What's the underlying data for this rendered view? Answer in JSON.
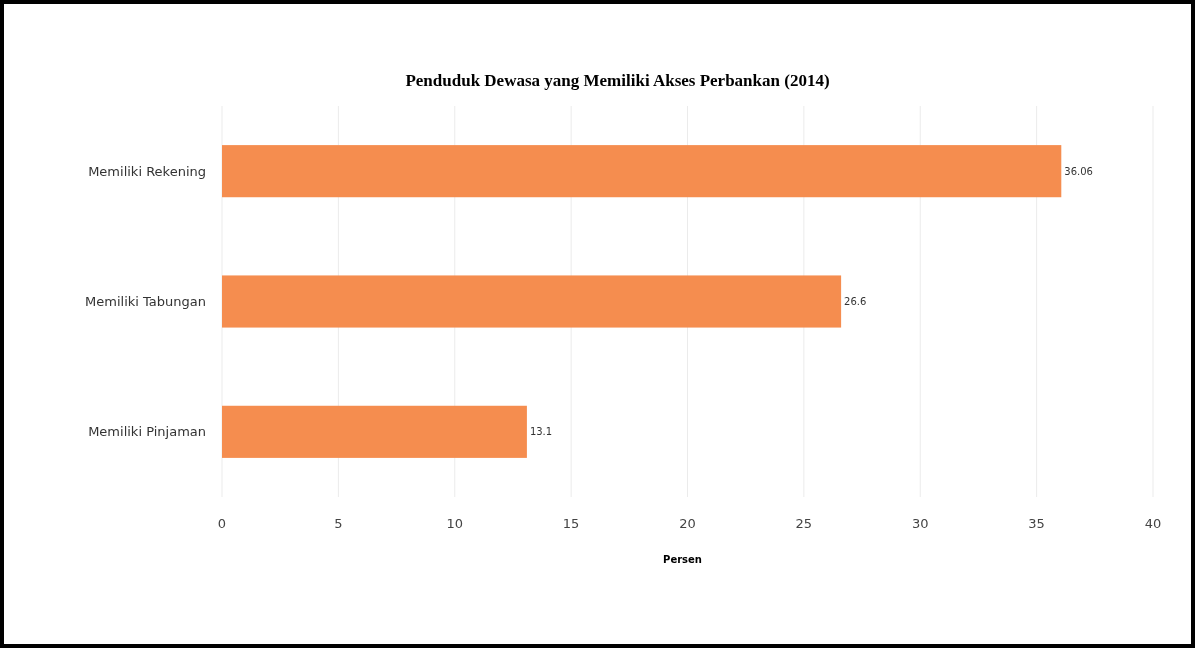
{
  "chart_data": {
    "type": "bar",
    "orientation": "horizontal",
    "title": "Penduduk Dewasa yang Memiliki Akses Perbankan (2014)",
    "xlabel": "Persen",
    "categories": [
      "Memiliki Rekening",
      "Memiliki Tabungan",
      "Memiliki Pinjaman"
    ],
    "values": [
      36.06,
      26.6,
      13.1
    ],
    "color": "#f58d4f",
    "xlim": [
      0,
      40
    ],
    "xticks": [
      0,
      5,
      10,
      15,
      20,
      25,
      30,
      35,
      40
    ],
    "grid": "x",
    "data_labels": true
  }
}
